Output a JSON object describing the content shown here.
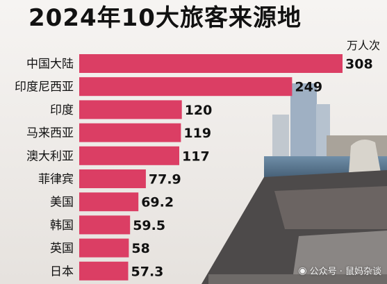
{
  "colors": {
    "bar": "#db3e64",
    "text": "#111111",
    "background": "#f4f1ee"
  },
  "watermark": {
    "icon": "wechat-icon",
    "text": "公众号 · 鼠妈杂谈"
  },
  "chart_data": {
    "type": "bar",
    "orientation": "horizontal",
    "title": "2024年10大旅客来源地",
    "unit": "万人次",
    "categories": [
      "中国大陆",
      "印度尼西亚",
      "印度",
      "马来西亚",
      "澳大利亚",
      "菲律宾",
      "美国",
      "韩国",
      "英国",
      "日本"
    ],
    "values": [
      308,
      249,
      120,
      119,
      117,
      77.9,
      69.2,
      59.5,
      58,
      57.3
    ],
    "value_labels": [
      "308",
      "249",
      "120",
      "119",
      "117",
      "77.9",
      "69.2",
      "59.5",
      "58",
      "57.3"
    ],
    "grid": false,
    "legend": "none"
  }
}
